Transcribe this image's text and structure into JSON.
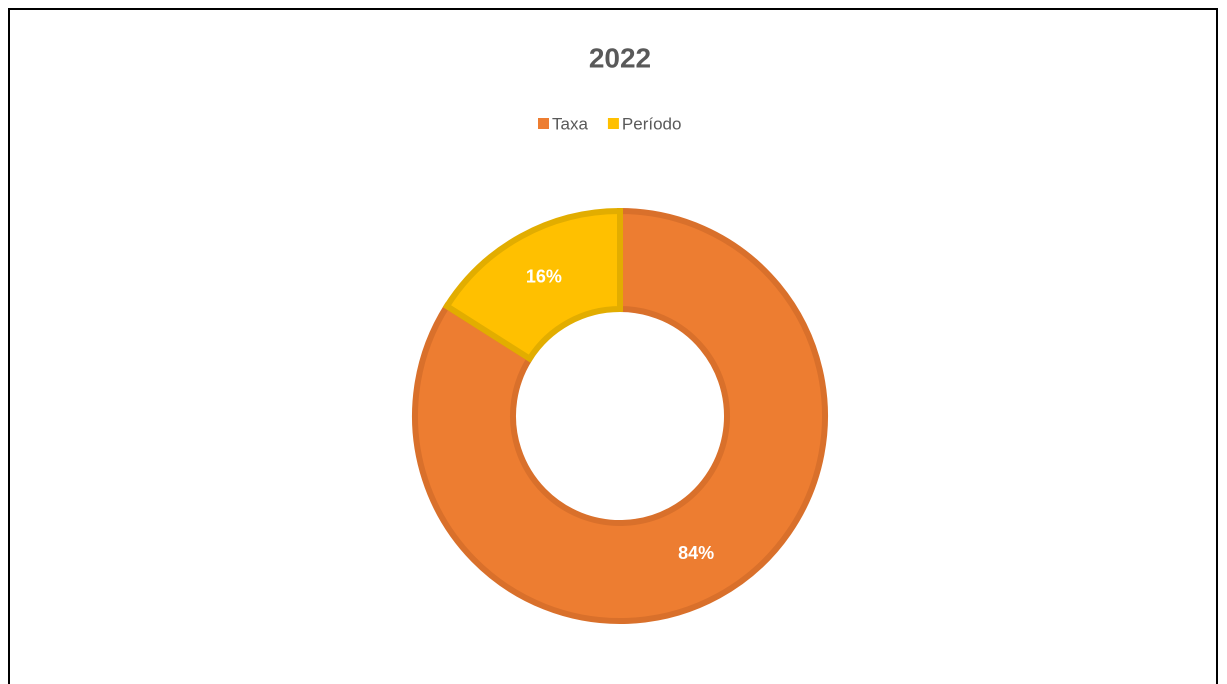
{
  "chart_data": {
    "type": "donut",
    "title": "2022",
    "categories": [
      "Taxa",
      "Período"
    ],
    "values": [
      84,
      16
    ],
    "value_labels": [
      "84%",
      "16%"
    ],
    "colors": [
      "#ed7d31",
      "#ffc000"
    ],
    "edge_colors": [
      "#d9702b",
      "#e2ad00"
    ],
    "legend": "top"
  }
}
